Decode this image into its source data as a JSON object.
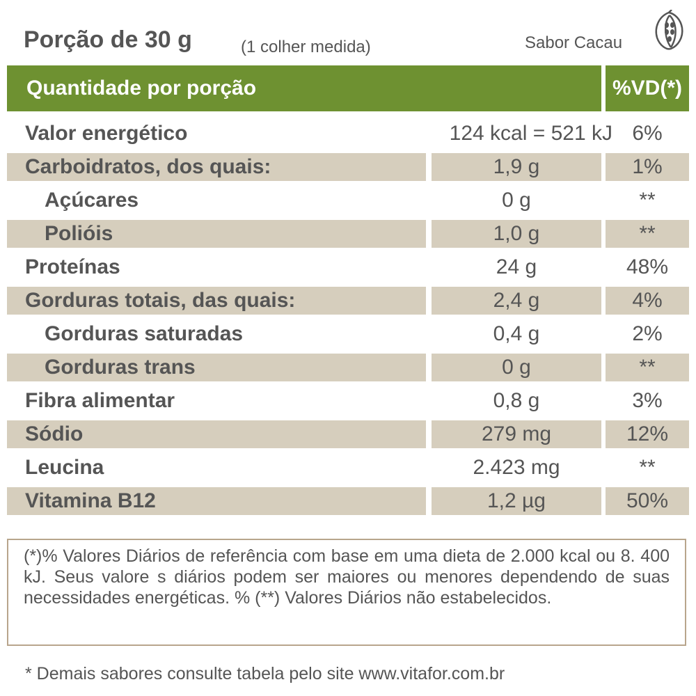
{
  "header": {
    "portion": "Porção de 30 g",
    "portion_note": "(1 colher medida)",
    "flavor": "Sabor Cacau",
    "flavor_icon": "cacao-pod-icon"
  },
  "table": {
    "header_label": "Quantidade por porção",
    "header_vd": "%VD(*)",
    "header_color": "#6e9131",
    "shade_color": "#d6cebd",
    "rows": [
      {
        "label": "Valor energético",
        "amount": "124 kcal = 521 kJ",
        "vd": "6%"
      },
      {
        "label": "Carboidratos, dos quais:",
        "amount": "1,9 g",
        "vd": "1%"
      },
      {
        "label": "Açúcares",
        "amount": "0 g",
        "vd": "**"
      },
      {
        "label": "Polióis",
        "amount": "1,0 g",
        "vd": "**"
      },
      {
        "label": "Proteínas",
        "amount": "24 g",
        "vd": "48%"
      },
      {
        "label": "Gorduras totais, das quais:",
        "amount": "2,4 g",
        "vd": "4%"
      },
      {
        "label": "Gorduras saturadas",
        "amount": "0,4 g",
        "vd": "2%"
      },
      {
        "label": "Gorduras trans",
        "amount": "0 g",
        "vd": "**"
      },
      {
        "label": "Fibra alimentar",
        "amount": "0,8 g",
        "vd": "3%"
      },
      {
        "label": "Sódio",
        "amount": "279 mg",
        "vd": "12%"
      },
      {
        "label": "Leucina",
        "amount": "2.423 mg",
        "vd": "**"
      },
      {
        "label": "Vitamina B12",
        "amount": "1,2 µg",
        "vd": "50%"
      }
    ]
  },
  "footnote": "(*)% Valores Diários de referência com base em uma dieta de 2.000 kcal ou 8. 400 kJ. Seus valore s diários podem ser maiores ou menores dependendo de suas necessidades energéticas. % (**) Valores Diários não estabelecidos.",
  "bottom_note": "* Demais sabores consulte tabela pelo site www.vitafor.com.br"
}
